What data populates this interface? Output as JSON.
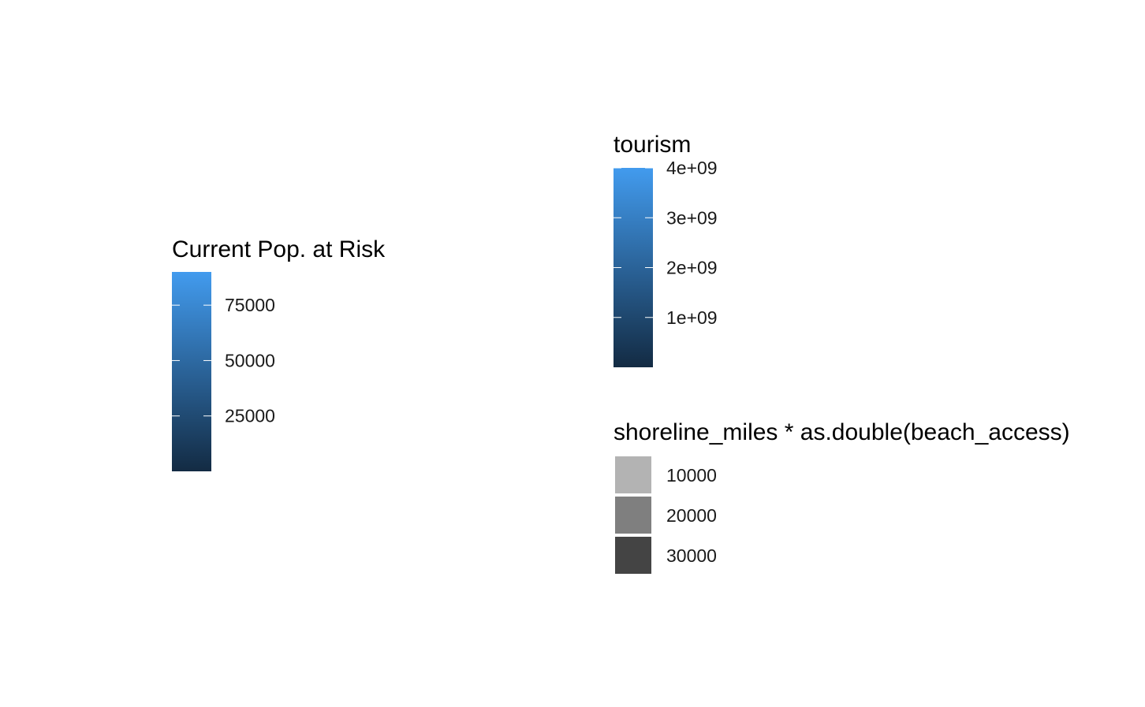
{
  "chart_data": [
    {
      "type": "legend-colorbar",
      "title": "Current Pop. at Risk",
      "ticks": [
        {
          "value": 75000,
          "label": "75000"
        },
        {
          "value": 50000,
          "label": "50000"
        },
        {
          "value": 25000,
          "label": "25000"
        }
      ],
      "range": [
        0,
        90000
      ],
      "colors": {
        "low": "#132b43",
        "high": "#429bee"
      }
    },
    {
      "type": "legend-colorbar",
      "title": "tourism",
      "ticks": [
        {
          "value": 4000000000,
          "label": "4e+09"
        },
        {
          "value": 3000000000,
          "label": "3e+09"
        },
        {
          "value": 2000000000,
          "label": "2e+09"
        },
        {
          "value": 1000000000,
          "label": "1e+09"
        }
      ],
      "range": [
        0,
        4000000000
      ],
      "colors": {
        "low": "#132b43",
        "high": "#429bee"
      }
    },
    {
      "type": "legend-discrete",
      "title": "shoreline_miles * as.double(beach_access)",
      "keys": [
        {
          "label": "10000",
          "color": "#b3b3b3"
        },
        {
          "label": "20000",
          "color": "#7f7f7f"
        },
        {
          "label": "30000",
          "color": "#444444"
        }
      ]
    }
  ]
}
